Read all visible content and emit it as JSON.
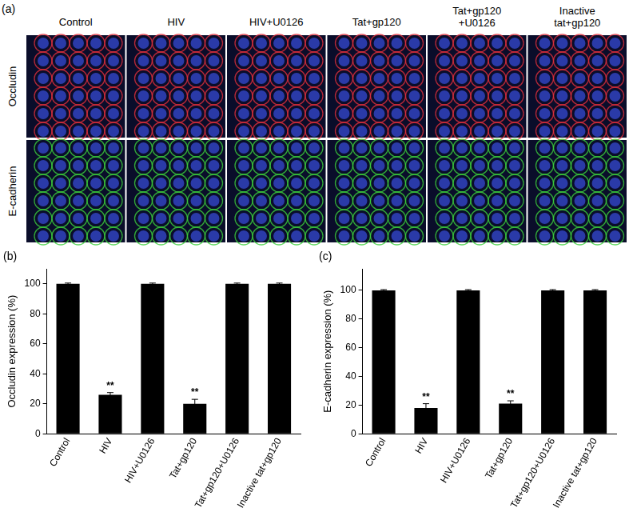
{
  "figure": {
    "panel_a": {
      "label": "(a)",
      "columns": [
        [
          "Control"
        ],
        [
          "HIV"
        ],
        [
          "HIV+U0126"
        ],
        [
          "Tat+gp120"
        ],
        [
          "Tat+gp120",
          "+U0126"
        ],
        [
          "Inactive",
          "tat+gp120"
        ]
      ],
      "rows": [
        "Occludin",
        "E-cadherin"
      ]
    }
  },
  "chart_data": [
    {
      "type": "bar",
      "panel_label": "(b)",
      "y_label": "Occludin expression (%)",
      "categories": [
        "Control",
        "HIV",
        "HIV+U0126",
        "Tat+gp120",
        "Tat+gp120+U0126",
        "Inactive tat+gp120"
      ],
      "values": [
        100,
        26,
        100,
        20,
        100,
        100
      ],
      "errors": [
        0.5,
        1.5,
        0.5,
        3,
        0.5,
        0.5
      ],
      "significance": [
        null,
        "**",
        null,
        "**",
        null,
        null
      ],
      "color": "#000000",
      "ylim": [
        0,
        110
      ],
      "yticks": [
        0,
        20,
        40,
        60,
        80,
        100
      ],
      "grid": false
    },
    {
      "type": "bar",
      "panel_label": "(c)",
      "y_label": "E-cadherin expression (%)",
      "categories": [
        "Control",
        "HIV",
        "HIV+U0126",
        "Tat+gp120",
        "Tat+gp120+U0126",
        "Inactive tat+gp120"
      ],
      "values": [
        100,
        18,
        100,
        21,
        100,
        100
      ],
      "errors": [
        0.5,
        3,
        0.5,
        2,
        0.5,
        0.5
      ],
      "significance": [
        null,
        "**",
        null,
        "**",
        null,
        null
      ],
      "color": "#000000",
      "ylim": [
        0,
        115
      ],
      "yticks": [
        0,
        20,
        40,
        60,
        80,
        100
      ],
      "grid": false
    }
  ]
}
